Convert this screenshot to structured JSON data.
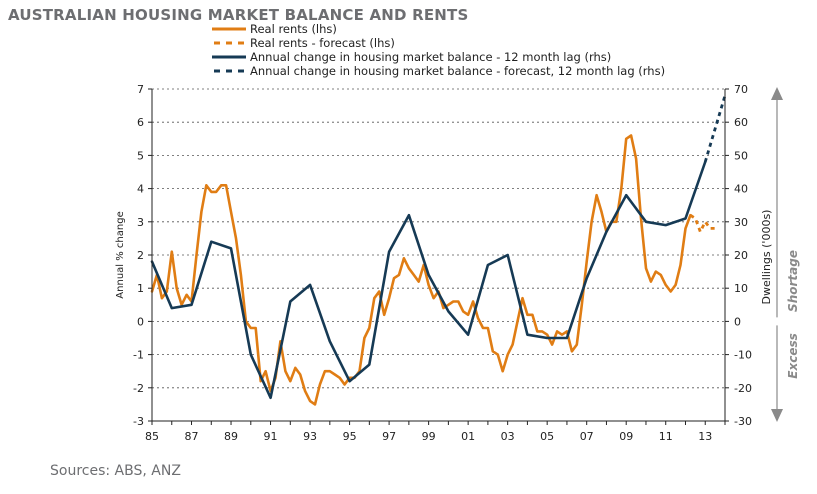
{
  "chart_data": {
    "type": "line",
    "title": "AUSTRALIAN HOUSING MARKET BALANCE AND RENTS",
    "source": "Sources: ABS, ANZ",
    "ylabel_left": "Annual % change",
    "ylabel_right": "Dwellings ('000s)",
    "ylim_left": [
      -3,
      7
    ],
    "ylim_right": [
      -30,
      70
    ],
    "y_ticks_left": [
      "-3",
      "-2",
      "-1",
      "0",
      "1",
      "2",
      "3",
      "4",
      "5",
      "6",
      "7"
    ],
    "y_ticks_right": [
      "-30",
      "-20",
      "-10",
      "0",
      "10",
      "20",
      "30",
      "40",
      "50",
      "60",
      "70"
    ],
    "xlim": [
      1985,
      2014
    ],
    "x_ticks": [
      {
        "value": 1985,
        "label": "85"
      },
      {
        "value": 1987,
        "label": "87"
      },
      {
        "value": 1989,
        "label": "89"
      },
      {
        "value": 1991,
        "label": "91"
      },
      {
        "value": 1993,
        "label": "93"
      },
      {
        "value": 1995,
        "label": "95"
      },
      {
        "value": 1997,
        "label": "97"
      },
      {
        "value": 1999,
        "label": "99"
      },
      {
        "value": 2001,
        "label": "01"
      },
      {
        "value": 2003,
        "label": "03"
      },
      {
        "value": 2005,
        "label": "05"
      },
      {
        "value": 2007,
        "label": "07"
      },
      {
        "value": 2009,
        "label": "09"
      },
      {
        "value": 2011,
        "label": "11"
      },
      {
        "value": 2013,
        "label": "13"
      }
    ],
    "side_labels": {
      "shortage": "Shortage",
      "excess": "Excess"
    },
    "legend": [
      {
        "label": "Real rents (lhs)",
        "color": "#e07d14",
        "style": "solid"
      },
      {
        "label": "Real rents  - forecast (lhs)",
        "color": "#e07d14",
        "style": "dashed"
      },
      {
        "label": "Annual change in housing market balance - 12 month lag (rhs)",
        "color": "#163a55",
        "style": "solid"
      },
      {
        "label": "Annual change in housing market balance - forecast, 12 month lag (rhs)",
        "color": "#163a55",
        "style": "dashed"
      }
    ],
    "series": [
      {
        "name": "Real rents (lhs)",
        "axis": "left",
        "color": "#e07d14",
        "style": "solid",
        "points": [
          [
            1985,
            0.9
          ],
          [
            1985.25,
            1.4
          ],
          [
            1985.5,
            0.7
          ],
          [
            1985.75,
            0.9
          ],
          [
            1986,
            2.1
          ],
          [
            1986.25,
            1.0
          ],
          [
            1986.5,
            0.5
          ],
          [
            1986.75,
            0.8
          ],
          [
            1987,
            0.6
          ],
          [
            1987.25,
            2.0
          ],
          [
            1987.5,
            3.3
          ],
          [
            1987.75,
            4.1
          ],
          [
            1988,
            3.9
          ],
          [
            1988.25,
            3.9
          ],
          [
            1988.5,
            4.1
          ],
          [
            1988.75,
            4.1
          ],
          [
            1989,
            3.3
          ],
          [
            1989.25,
            2.5
          ],
          [
            1989.5,
            1.4
          ],
          [
            1989.75,
            0.0
          ],
          [
            1990,
            -0.2
          ],
          [
            1990.25,
            -0.2
          ],
          [
            1990.5,
            -1.8
          ],
          [
            1990.75,
            -1.5
          ],
          [
            1991,
            -2.1
          ],
          [
            1991.25,
            -1.7
          ],
          [
            1991.5,
            -0.6
          ],
          [
            1991.75,
            -1.5
          ],
          [
            1992,
            -1.8
          ],
          [
            1992.25,
            -1.4
          ],
          [
            1992.5,
            -1.6
          ],
          [
            1992.75,
            -2.1
          ],
          [
            1993,
            -2.4
          ],
          [
            1993.25,
            -2.5
          ],
          [
            1993.5,
            -1.9
          ],
          [
            1993.75,
            -1.5
          ],
          [
            1994,
            -1.5
          ],
          [
            1994.25,
            -1.6
          ],
          [
            1994.5,
            -1.7
          ],
          [
            1994.75,
            -1.9
          ],
          [
            1995,
            -1.7
          ],
          [
            1995.25,
            -1.7
          ],
          [
            1995.5,
            -1.5
          ],
          [
            1995.75,
            -0.5
          ],
          [
            1996,
            -0.2
          ],
          [
            1996.25,
            0.7
          ],
          [
            1996.5,
            0.9
          ],
          [
            1996.75,
            0.2
          ],
          [
            1997,
            0.7
          ],
          [
            1997.25,
            1.3
          ],
          [
            1997.5,
            1.4
          ],
          [
            1997.75,
            1.9
          ],
          [
            1998,
            1.6
          ],
          [
            1998.25,
            1.4
          ],
          [
            1998.5,
            1.2
          ],
          [
            1998.75,
            1.7
          ],
          [
            1999,
            1.1
          ],
          [
            1999.25,
            0.7
          ],
          [
            1999.5,
            0.9
          ],
          [
            1999.75,
            0.4
          ],
          [
            2000,
            0.5
          ],
          [
            2000.25,
            0.6
          ],
          [
            2000.5,
            0.6
          ],
          [
            2000.75,
            0.3
          ],
          [
            2001,
            0.2
          ],
          [
            2001.25,
            0.6
          ],
          [
            2001.5,
            0.1
          ],
          [
            2001.75,
            -0.2
          ],
          [
            2002,
            -0.2
          ],
          [
            2002.25,
            -0.9
          ],
          [
            2002.5,
            -1.0
          ],
          [
            2002.75,
            -1.5
          ],
          [
            2003,
            -1.0
          ],
          [
            2003.25,
            -0.7
          ],
          [
            2003.5,
            0.0
          ],
          [
            2003.75,
            0.7
          ],
          [
            2004,
            0.2
          ],
          [
            2004.25,
            0.2
          ],
          [
            2004.5,
            -0.3
          ],
          [
            2004.75,
            -0.3
          ],
          [
            2005,
            -0.4
          ],
          [
            2005.25,
            -0.7
          ],
          [
            2005.5,
            -0.3
          ],
          [
            2005.75,
            -0.4
          ],
          [
            2006,
            -0.3
          ],
          [
            2006.25,
            -0.9
          ],
          [
            2006.5,
            -0.7
          ],
          [
            2006.75,
            0.5
          ],
          [
            2007,
            1.8
          ],
          [
            2007.25,
            3.0
          ],
          [
            2007.5,
            3.8
          ],
          [
            2007.75,
            3.3
          ],
          [
            2008,
            2.7
          ],
          [
            2008.25,
            3.0
          ],
          [
            2008.5,
            3.0
          ],
          [
            2008.75,
            4.0
          ],
          [
            2009,
            5.5
          ],
          [
            2009.25,
            5.6
          ],
          [
            2009.5,
            4.9
          ],
          [
            2009.75,
            3.1
          ],
          [
            2010,
            1.6
          ],
          [
            2010.25,
            1.2
          ],
          [
            2010.5,
            1.5
          ],
          [
            2010.75,
            1.4
          ],
          [
            2011,
            1.1
          ],
          [
            2011.25,
            0.9
          ],
          [
            2011.5,
            1.1
          ],
          [
            2011.75,
            1.7
          ],
          [
            2012,
            2.8
          ],
          [
            2012.25,
            3.2
          ]
        ]
      },
      {
        "name": "Real rents - forecast (lhs)",
        "axis": "left",
        "color": "#e07d14",
        "style": "dashed",
        "points": [
          [
            2012.25,
            3.2
          ],
          [
            2012.5,
            3.1
          ],
          [
            2012.75,
            2.7
          ],
          [
            2013,
            3.0
          ],
          [
            2013.25,
            2.8
          ],
          [
            2013.5,
            2.8
          ]
        ]
      },
      {
        "name": "Annual change in housing market balance - 12 month lag (rhs)",
        "axis": "right",
        "color": "#163a55",
        "style": "solid",
        "points": [
          [
            1985,
            18
          ],
          [
            1986,
            4
          ],
          [
            1987,
            5
          ],
          [
            1988,
            24
          ],
          [
            1989,
            22
          ],
          [
            1990,
            -10
          ],
          [
            1991,
            -23
          ],
          [
            1992,
            6
          ],
          [
            1993,
            11
          ],
          [
            1994,
            -6
          ],
          [
            1995,
            -18
          ],
          [
            1996,
            -13
          ],
          [
            1997,
            21
          ],
          [
            1998,
            32
          ],
          [
            1999,
            14
          ],
          [
            2000,
            3
          ],
          [
            2001,
            -4
          ],
          [
            2002,
            17
          ],
          [
            2003,
            20
          ],
          [
            2004,
            -4
          ],
          [
            2005,
            -5
          ],
          [
            2006,
            -5
          ],
          [
            2007,
            13
          ],
          [
            2008,
            27
          ],
          [
            2009,
            38
          ],
          [
            2010,
            30
          ],
          [
            2011,
            29
          ],
          [
            2012,
            31
          ],
          [
            2013,
            48
          ]
        ]
      },
      {
        "name": "Annual change in housing market balance - forecast, 12 month lag (rhs)",
        "axis": "right",
        "color": "#163a55",
        "style": "dashed",
        "points": [
          [
            2013,
            48
          ],
          [
            2013.5,
            58
          ],
          [
            2014,
            68
          ]
        ]
      }
    ]
  }
}
